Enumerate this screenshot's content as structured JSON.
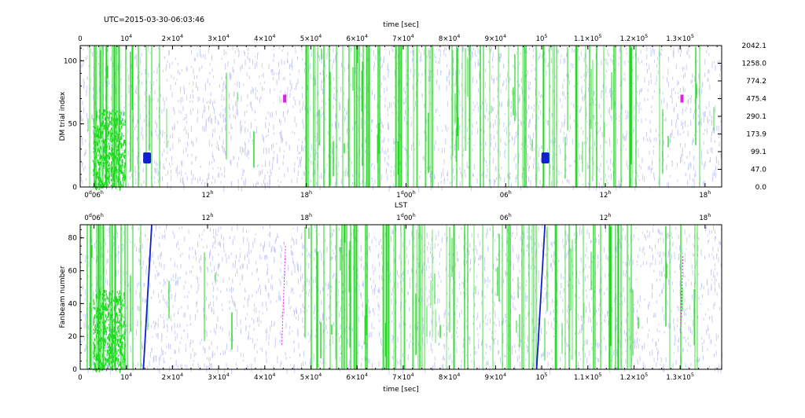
{
  "utc_label": "UTC=2015-03-30-06:03:46",
  "colors": {
    "background": "#ffffff",
    "axes": "#000000",
    "noise": "#c9cdf4",
    "rfi": "#1fd91f",
    "pulsar_blue": "#1020d0",
    "pulsar_magenta": "#e020e0"
  },
  "chart_data": [
    {
      "name": "top-panel",
      "type": "scatter",
      "ylabel": "DM trial index",
      "xlabel_top": "time [sec]",
      "xlabel_bottom": "LST",
      "xlim": [
        0,
        139000
      ],
      "ylim": [
        0,
        112
      ],
      "x_ticks_top": [
        {
          "v": 0,
          "t": "0"
        },
        {
          "v": 10000,
          "t": "10",
          "sup": "4"
        },
        {
          "v": 20000,
          "t": "2×10",
          "sup": "4"
        },
        {
          "v": 30000,
          "t": "3×10",
          "sup": "4"
        },
        {
          "v": 40000,
          "t": "4×10",
          "sup": "4"
        },
        {
          "v": 50000,
          "t": "5×10",
          "sup": "4"
        },
        {
          "v": 60000,
          "t": "6×10",
          "sup": "4"
        },
        {
          "v": 70000,
          "t": "7×10",
          "sup": "4"
        },
        {
          "v": 80000,
          "t": "8×10",
          "sup": "4"
        },
        {
          "v": 90000,
          "t": "9×10",
          "sup": "4"
        },
        {
          "v": 100000,
          "t": "10",
          "sup": "5"
        },
        {
          "v": 110000,
          "t": "1.1×10",
          "sup": "5"
        },
        {
          "v": 120000,
          "t": "1.2×10",
          "sup": "5"
        },
        {
          "v": 130000,
          "t": "1.3×10",
          "sup": "5"
        }
      ],
      "x_ticks_lst": [
        {
          "v": 3000,
          "t": "0",
          "sup": "d",
          "t2": "06",
          "sup2": "h"
        },
        {
          "v": 27600,
          "t": "12",
          "sup": "h"
        },
        {
          "v": 49000,
          "t": "18",
          "sup": "h"
        },
        {
          "v": 70600,
          "t": "1",
          "sup": "d",
          "t2": "00",
          "sup2": "h"
        },
        {
          "v": 92200,
          "t": "06",
          "sup": "h"
        },
        {
          "v": 113800,
          "t": "12",
          "sup": "h"
        },
        {
          "v": 135400,
          "t": "18",
          "sup": "h"
        }
      ],
      "y_ticks_left": [
        0,
        50,
        100
      ],
      "y_ticks_right": [
        {
          "idx": 0,
          "dm": "0.0"
        },
        {
          "idx": 14,
          "dm": "47.0"
        },
        {
          "idx": 28,
          "dm": "99.1"
        },
        {
          "idx": 42,
          "dm": "173.9"
        },
        {
          "idx": 56,
          "dm": "290.1"
        },
        {
          "idx": 70,
          "dm": "475.4"
        },
        {
          "idx": 84,
          "dm": "774.2"
        },
        {
          "idx": 98,
          "dm": "1258.0"
        },
        {
          "idx": 112,
          "dm": "2042.1"
        }
      ],
      "pulsar_blobs": [
        {
          "x": 14500,
          "y": 23,
          "color": "blue"
        },
        {
          "x": 100800,
          "y": 23,
          "color": "blue"
        },
        {
          "x": 44300,
          "y": 70,
          "color": "magenta"
        },
        {
          "x": 130400,
          "y": 70,
          "color": "magenta"
        }
      ]
    },
    {
      "name": "bottom-panel",
      "type": "scatter",
      "ylabel": "Fanbeam number",
      "xlabel_bottom": "time [sec]",
      "xlabel_top": "LST",
      "xlim": [
        0,
        139000
      ],
      "ylim": [
        0,
        88
      ],
      "x_ticks_bottom": [
        {
          "v": 0,
          "t": "0"
        },
        {
          "v": 10000,
          "t": "10",
          "sup": "4"
        },
        {
          "v": 20000,
          "t": "2×10",
          "sup": "4"
        },
        {
          "v": 30000,
          "t": "3×10",
          "sup": "4"
        },
        {
          "v": 40000,
          "t": "4×10",
          "sup": "4"
        },
        {
          "v": 50000,
          "t": "5×10",
          "sup": "4"
        },
        {
          "v": 60000,
          "t": "6×10",
          "sup": "4"
        },
        {
          "v": 70000,
          "t": "7×10",
          "sup": "4"
        },
        {
          "v": 80000,
          "t": "8×10",
          "sup": "4"
        },
        {
          "v": 90000,
          "t": "9×10",
          "sup": "4"
        },
        {
          "v": 100000,
          "t": "10",
          "sup": "5"
        },
        {
          "v": 110000,
          "t": "1.1×10",
          "sup": "5"
        },
        {
          "v": 120000,
          "t": "1.2×10",
          "sup": "5"
        },
        {
          "v": 130000,
          "t": "1.3×10",
          "sup": "5"
        }
      ],
      "x_ticks_lst": [
        {
          "v": 3000,
          "t": "0",
          "sup": "d",
          "t2": "06",
          "sup2": "h"
        },
        {
          "v": 27600,
          "t": "12",
          "sup": "h"
        },
        {
          "v": 49000,
          "t": "18",
          "sup": "h"
        },
        {
          "v": 70600,
          "t": "1",
          "sup": "d",
          "t2": "00",
          "sup2": "h"
        },
        {
          "v": 92200,
          "t": "06",
          "sup": "h"
        },
        {
          "v": 113800,
          "t": "12",
          "sup": "h"
        },
        {
          "v": 135400,
          "t": "18",
          "sup": "h"
        }
      ],
      "y_ticks_left": [
        0,
        20,
        40,
        60,
        80
      ],
      "pulsar_tracks": [
        {
          "x0": 13700,
          "y0": 0,
          "x1": 15500,
          "y1": 88,
          "color": "blue"
        },
        {
          "x0": 98900,
          "y0": 0,
          "x1": 100700,
          "y1": 88,
          "color": "blue"
        },
        {
          "x0": 43700,
          "y0": 15,
          "x1": 44500,
          "y1": 75,
          "color": "magenta"
        },
        {
          "x0": 130100,
          "y0": 22,
          "x1": 130600,
          "y1": 70,
          "color": "magenta"
        }
      ]
    }
  ]
}
